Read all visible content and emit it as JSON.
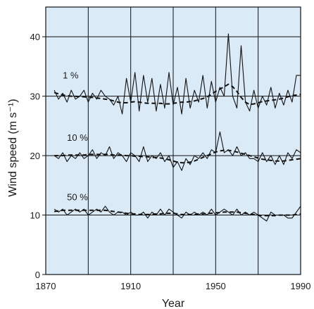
{
  "chart_data": {
    "type": "line",
    "xlabel": "Year",
    "ylabel": "Wind speed (m s⁻¹)",
    "xlim": [
      1870,
      1990
    ],
    "ylim": [
      0,
      45
    ],
    "x_ticks": [
      1870,
      1910,
      1950,
      1990
    ],
    "y_ticks": [
      0,
      10,
      20,
      30,
      40
    ],
    "x_gridlines": [
      1870,
      1890,
      1910,
      1930,
      1950,
      1970,
      1990
    ],
    "grid": true,
    "plot_background": "#dbeaf7",
    "line_color": "#111111",
    "series": [
      {
        "name": "1 %",
        "label_year": 1878,
        "label_value": 33,
        "x": [
          1874,
          1876,
          1878,
          1880,
          1882,
          1884,
          1886,
          1888,
          1890,
          1892,
          1894,
          1896,
          1898,
          1900,
          1902,
          1904,
          1906,
          1908,
          1910,
          1912,
          1914,
          1916,
          1918,
          1920,
          1922,
          1924,
          1926,
          1928,
          1930,
          1932,
          1934,
          1936,
          1938,
          1940,
          1942,
          1944,
          1946,
          1948,
          1950,
          1952,
          1954,
          1956,
          1958,
          1960,
          1962,
          1964,
          1966,
          1968,
          1970,
          1972,
          1974,
          1976,
          1978,
          1980,
          1982,
          1984,
          1986,
          1988,
          1990
        ],
        "values": [
          31,
          29.5,
          30.5,
          29,
          31,
          29.5,
          30,
          31,
          29,
          30.5,
          29.5,
          31,
          30,
          29.5,
          28.5,
          30,
          27,
          33,
          29,
          34,
          27.5,
          33.5,
          29,
          33,
          27.5,
          32,
          28,
          34,
          28.5,
          31.5,
          27,
          33,
          28,
          31,
          29,
          33.5,
          28,
          32.5,
          29,
          31.5,
          30,
          40.5,
          30,
          28,
          38.5,
          29,
          27.5,
          31,
          28,
          30,
          28.5,
          31.5,
          28,
          30.5,
          28.5,
          31,
          29,
          33.5,
          33.5
        ],
        "smoothed": [
          30.6,
          30.4,
          30.2,
          30.1,
          30.0,
          30.0,
          29.9,
          29.9,
          29.8,
          29.8,
          29.7,
          29.6,
          29.5,
          29.4,
          29.2,
          29.0,
          28.9,
          28.9,
          29.0,
          29.1,
          29.0,
          28.9,
          28.8,
          28.8,
          28.8,
          28.8,
          28.7,
          28.7,
          28.8,
          28.9,
          29.0,
          29.0,
          29.1,
          29.2,
          29.4,
          29.6,
          29.9,
          30.3,
          30.8,
          31.2,
          31.6,
          32.0,
          31.6,
          30.8,
          29.8,
          29.0,
          28.6,
          28.7,
          28.9,
          29.1,
          29.2,
          29.3,
          29.4,
          29.5,
          29.7,
          29.9,
          30.1,
          30.2,
          30.3
        ]
      },
      {
        "name": "10 %",
        "label_year": 1880,
        "label_value": 22.5,
        "x": [
          1874,
          1876,
          1878,
          1880,
          1882,
          1884,
          1886,
          1888,
          1890,
          1892,
          1894,
          1896,
          1898,
          1900,
          1902,
          1904,
          1906,
          1908,
          1910,
          1912,
          1914,
          1916,
          1918,
          1920,
          1922,
          1924,
          1926,
          1928,
          1930,
          1932,
          1934,
          1936,
          1938,
          1940,
          1942,
          1944,
          1946,
          1948,
          1950,
          1952,
          1954,
          1956,
          1958,
          1960,
          1962,
          1964,
          1966,
          1968,
          1970,
          1972,
          1974,
          1976,
          1978,
          1980,
          1982,
          1984,
          1986,
          1988,
          1990
        ],
        "values": [
          20,
          19.5,
          20.5,
          19,
          20,
          19.5,
          20.5,
          19.5,
          20,
          21,
          19.5,
          20.5,
          20,
          21.5,
          19.5,
          20.5,
          20,
          19,
          20.5,
          20,
          19,
          21.5,
          19,
          20,
          19.5,
          20.5,
          19,
          20,
          18,
          19,
          17.5,
          19.5,
          18.5,
          20,
          19.5,
          20.5,
          19.5,
          21,
          20.5,
          24,
          20.5,
          21,
          20,
          21.5,
          20,
          20.5,
          19.5,
          19.5,
          19,
          20.5,
          19,
          20,
          18.5,
          20,
          18.5,
          20.5,
          19.5,
          21,
          20.5
        ],
        "smoothed": [
          20.0,
          20.0,
          20.0,
          20.1,
          20.1,
          20.1,
          20.1,
          20.1,
          20.2,
          20.2,
          20.2,
          20.2,
          20.2,
          20.2,
          20.1,
          20.1,
          20.1,
          20.0,
          20.0,
          19.9,
          19.9,
          19.8,
          19.8,
          19.7,
          19.7,
          19.6,
          19.5,
          19.3,
          19.1,
          18.9,
          18.8,
          18.8,
          18.9,
          19.1,
          19.4,
          19.7,
          20.0,
          20.3,
          20.6,
          20.8,
          20.9,
          20.9,
          20.8,
          20.6,
          20.4,
          20.2,
          20.0,
          19.8,
          19.6,
          19.4,
          19.3,
          19.2,
          19.1,
          19.1,
          19.1,
          19.2,
          19.3,
          19.4,
          19.5
        ]
      },
      {
        "name": "50 %",
        "label_year": 1880,
        "label_value": 12.5,
        "x": [
          1874,
          1876,
          1878,
          1880,
          1882,
          1884,
          1886,
          1888,
          1890,
          1892,
          1894,
          1896,
          1898,
          1900,
          1902,
          1904,
          1906,
          1908,
          1910,
          1912,
          1914,
          1916,
          1918,
          1920,
          1922,
          1924,
          1926,
          1928,
          1930,
          1932,
          1934,
          1936,
          1938,
          1940,
          1942,
          1944,
          1946,
          1948,
          1950,
          1952,
          1954,
          1956,
          1958,
          1960,
          1962,
          1964,
          1966,
          1968,
          1970,
          1972,
          1974,
          1976,
          1978,
          1980,
          1982,
          1984,
          1986,
          1988,
          1990
        ],
        "values": [
          11,
          10.5,
          11,
          10,
          10.5,
          11,
          10.5,
          11,
          10,
          10.5,
          11,
          10.5,
          11.5,
          10.5,
          10,
          10.5,
          10.5,
          10,
          10.5,
          10,
          10,
          10.5,
          9.5,
          10.5,
          10,
          11,
          10,
          11,
          10.5,
          10,
          9.5,
          10.5,
          10,
          10.5,
          10,
          10.5,
          10,
          11,
          10,
          10.5,
          11,
          10.5,
          10,
          11,
          10,
          10.5,
          10,
          10.5,
          10,
          9.5,
          9,
          10.5,
          10,
          10,
          10,
          9.5,
          9.5,
          10.5,
          11.5
        ],
        "smoothed": [
          10.6,
          10.7,
          10.8,
          10.8,
          10.8,
          10.8,
          10.8,
          10.8,
          10.8,
          10.8,
          10.8,
          10.8,
          10.8,
          10.7,
          10.6,
          10.5,
          10.4,
          10.3,
          10.2,
          10.2,
          10.1,
          10.1,
          10.1,
          10.1,
          10.2,
          10.2,
          10.3,
          10.3,
          10.3,
          10.2,
          10.1,
          10.1,
          10.1,
          10.1,
          10.2,
          10.2,
          10.3,
          10.3,
          10.4,
          10.4,
          10.5,
          10.5,
          10.5,
          10.5,
          10.4,
          10.3,
          10.2,
          10.1,
          10.0,
          9.9,
          9.9,
          9.9,
          9.9,
          10.0,
          10.0,
          10.0,
          10.0,
          10.1,
          10.2
        ]
      }
    ]
  }
}
